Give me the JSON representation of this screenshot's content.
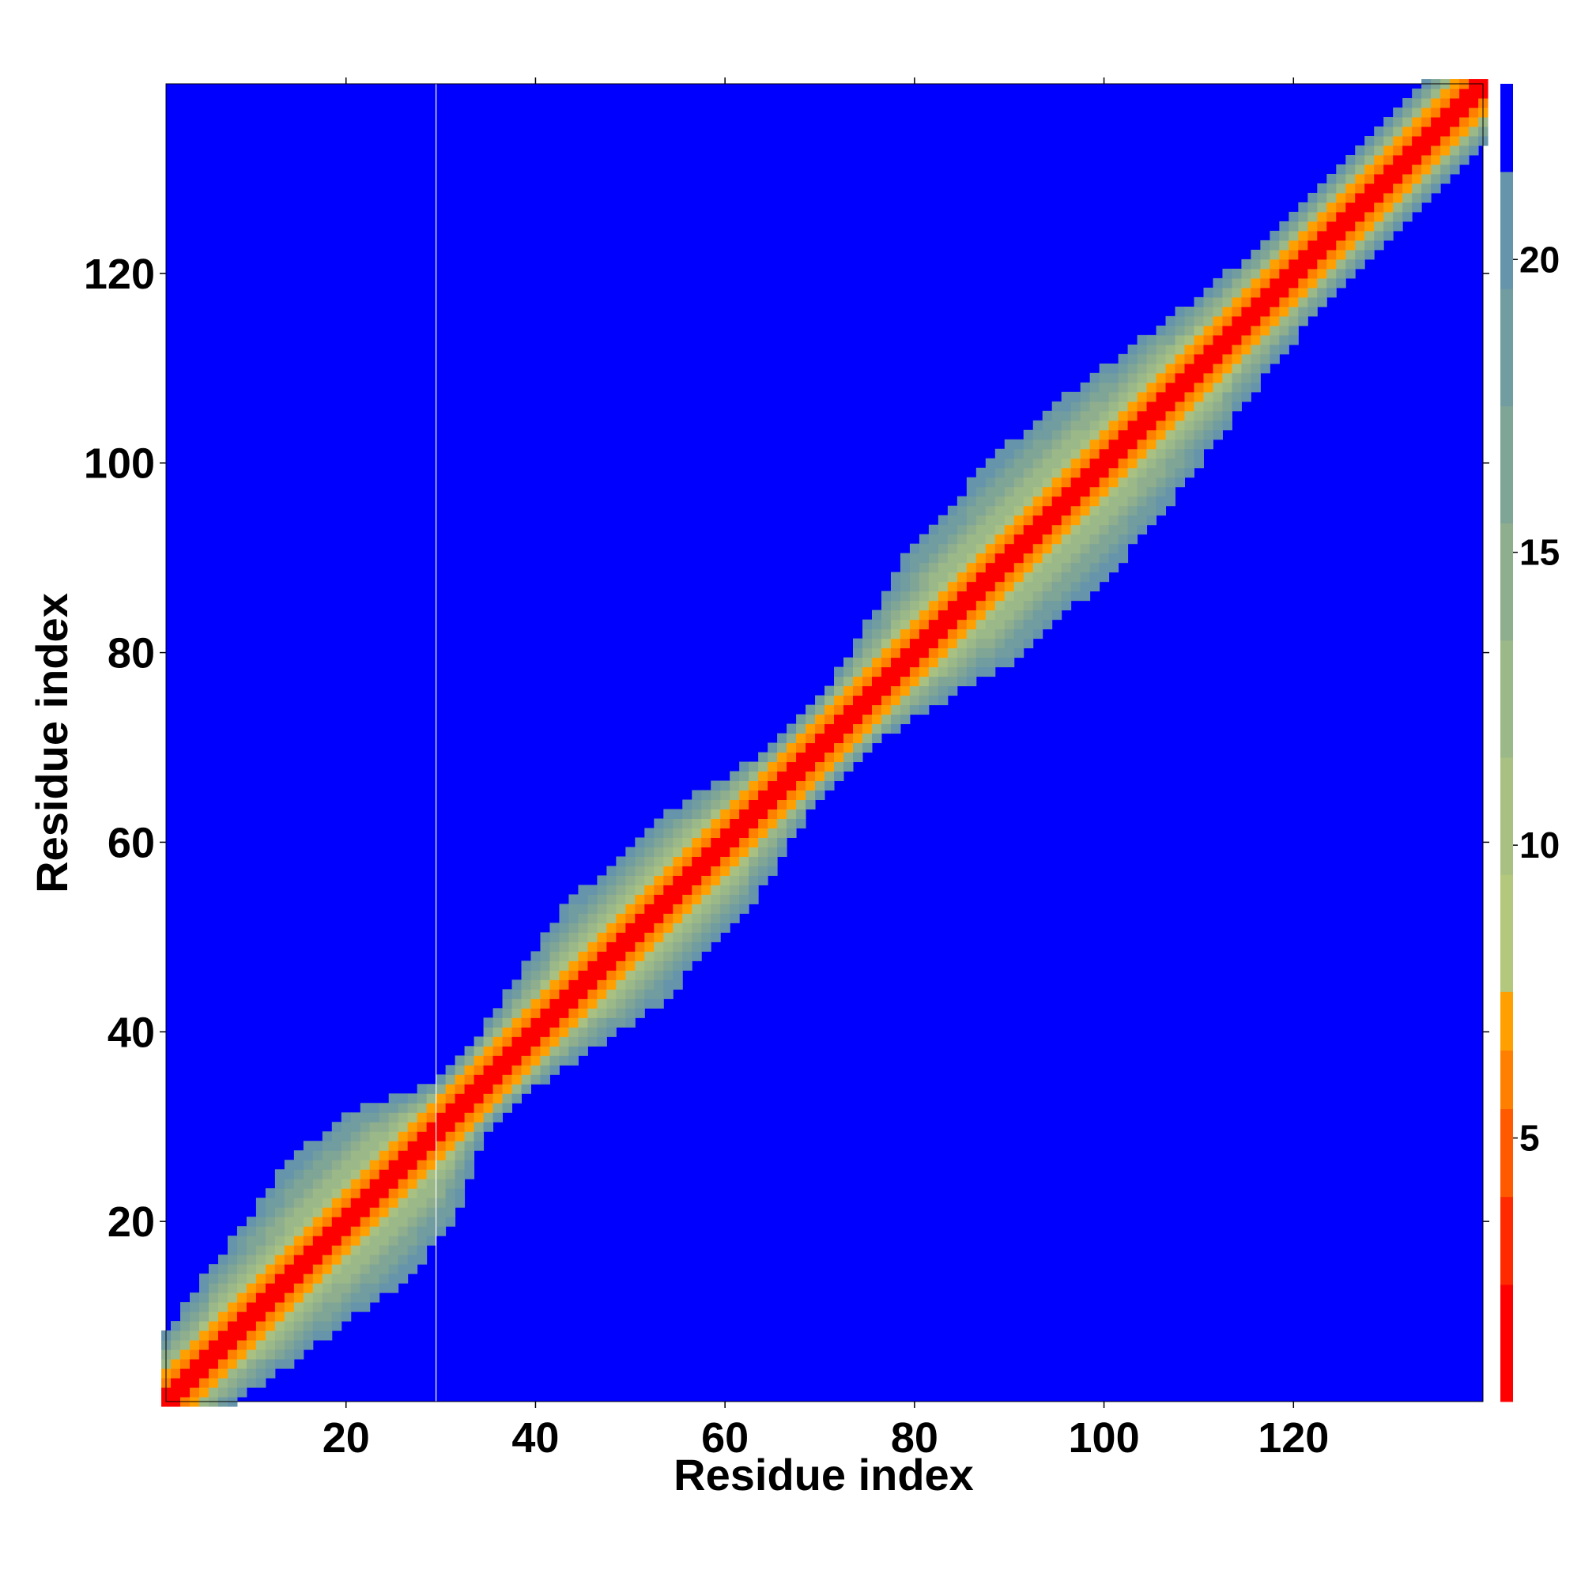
{
  "chart_data": {
    "type": "heatmap",
    "title": "",
    "xlabel": "Residue index",
    "ylabel": "Residue index",
    "n_residues": 140,
    "xlim": [
      1,
      140
    ],
    "ylim": [
      1,
      140
    ],
    "xticks": [
      20,
      40,
      60,
      80,
      100,
      120
    ],
    "yticks": [
      20,
      40,
      60,
      80,
      100,
      120
    ],
    "colorbar": {
      "range": [
        0.5,
        23
      ],
      "ticks": [
        5,
        10,
        15,
        20
      ],
      "levels": [
        {
          "max": 2.5,
          "color": "#ff0000"
        },
        {
          "max": 4.0,
          "color": "#ff2a00"
        },
        {
          "max": 5.5,
          "color": "#ff5a00"
        },
        {
          "max": 6.5,
          "color": "#ff8000"
        },
        {
          "max": 7.5,
          "color": "#ffa000"
        },
        {
          "max": 9.5,
          "color": "#b3c77d"
        },
        {
          "max": 11.5,
          "color": "#a8c182"
        },
        {
          "max": 13.5,
          "color": "#9bb888"
        },
        {
          "max": 15.5,
          "color": "#8eae8e"
        },
        {
          "max": 17.5,
          "color": "#7fa596"
        },
        {
          "max": 19.5,
          "color": "#719ca0"
        },
        {
          "max": 21.5,
          "color": "#6694aa"
        },
        {
          "max": 23,
          "color": "#0000ff"
        }
      ]
    },
    "band_halfwidth_profile": [
      {
        "residue": 1,
        "halfwidth": 6
      },
      {
        "residue": 10,
        "halfwidth": 9
      },
      {
        "residue": 20,
        "halfwidth": 12
      },
      {
        "residue": 26,
        "halfwidth": 11
      },
      {
        "residue": 32,
        "halfwidth": 5
      },
      {
        "residue": 38,
        "halfwidth": 6
      },
      {
        "residue": 48,
        "halfwidth": 10
      },
      {
        "residue": 58,
        "halfwidth": 9
      },
      {
        "residue": 68,
        "halfwidth": 5
      },
      {
        "residue": 75,
        "halfwidth": 6
      },
      {
        "residue": 85,
        "halfwidth": 11
      },
      {
        "residue": 95,
        "halfwidth": 12
      },
      {
        "residue": 105,
        "halfwidth": 10
      },
      {
        "residue": 115,
        "halfwidth": 7
      },
      {
        "residue": 125,
        "halfwidth": 6
      },
      {
        "residue": 140,
        "halfwidth": 6
      }
    ],
    "marker_line_residue": 29.5,
    "background_color": "#0000ff"
  }
}
